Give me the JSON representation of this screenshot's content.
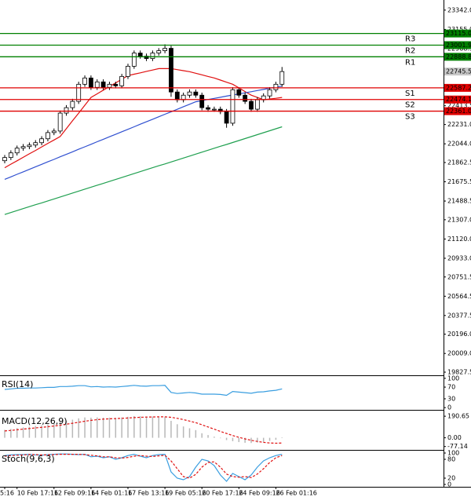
{
  "chart_data": [
    {
      "type": "candlestick",
      "categories": [
        "5:16",
        null,
        "10 Feb 17:16",
        null,
        null,
        null,
        null,
        null,
        "12 Feb 09:16",
        null,
        null,
        null,
        null,
        null,
        "14 Feb 01:16",
        null,
        null,
        null,
        null,
        null,
        "17 Feb 13:16",
        null,
        null,
        null,
        null,
        null,
        "19 Feb 05:16",
        null,
        null,
        null,
        null,
        null,
        "20 Feb 17:16",
        null,
        null,
        null,
        null,
        null,
        "24 Feb 09:16",
        null,
        null,
        null,
        null,
        null,
        "26 Feb 01:16",
        null
      ],
      "open": [
        21880,
        21911,
        21956,
        22002,
        22017,
        22032,
        22055,
        22093,
        22153,
        22168,
        22342,
        22395,
        22456,
        22622,
        22683,
        22592,
        22645,
        22592,
        22622,
        22607,
        22698,
        22797,
        22925,
        22895,
        22872,
        22925,
        22948,
        22971,
        22547,
        22471,
        22516,
        22547,
        22516,
        22395,
        22380,
        22380,
        22357,
        22244,
        22569,
        22516,
        22456,
        22380,
        22471,
        22509,
        22569,
        22622
      ],
      "high": [
        21936,
        21981,
        22027,
        22042,
        22057,
        22080,
        22118,
        22178,
        22193,
        22367,
        22420,
        22481,
        22647,
        22708,
        22708,
        22670,
        22670,
        22647,
        22647,
        22723,
        22822,
        22950,
        22950,
        22920,
        22950,
        22973,
        23010,
        22996,
        22572,
        22541,
        22572,
        22572,
        22541,
        22420,
        22405,
        22405,
        22382,
        22594,
        22594,
        22541,
        22481,
        22496,
        22534,
        22594,
        22647,
        22790
      ],
      "low": [
        21855,
        21886,
        21931,
        21977,
        21992,
        22007,
        22030,
        22068,
        22128,
        22143,
        22317,
        22370,
        22431,
        22597,
        22567,
        22567,
        22567,
        22567,
        22582,
        22582,
        22673,
        22772,
        22870,
        22847,
        22847,
        22900,
        22923,
        22500,
        22446,
        22446,
        22491,
        22491,
        22370,
        22355,
        22355,
        22332,
        22200,
        22219,
        22491,
        22431,
        22355,
        22355,
        22446,
        22484,
        22544,
        22597
      ],
      "close": [
        21911,
        21956,
        22002,
        22017,
        22032,
        22055,
        22093,
        22153,
        22168,
        22342,
        22395,
        22456,
        22622,
        22683,
        22592,
        22645,
        22592,
        22622,
        22607,
        22698,
        22797,
        22925,
        22895,
        22872,
        22925,
        22948,
        22971,
        22547,
        22471,
        22516,
        22547,
        22516,
        22395,
        22380,
        22380,
        22357,
        22244,
        22569,
        22516,
        22456,
        22380,
        22471,
        22509,
        22569,
        22622,
        22745.5
      ],
      "up_color": "#ffffff",
      "down_color": "#000000",
      "outline_color": "#000000",
      "series": [
        {
          "color": "#e01010",
          "values": [
            21812,
            21846,
            21879,
            21913,
            21947,
            21980,
            22014,
            22048,
            22081,
            22115,
            22191,
            22267,
            22342,
            22418,
            22494,
            22529,
            22565,
            22600,
            22635,
            22671,
            22706,
            22720,
            22733,
            22747,
            22760,
            22774,
            22774,
            22774,
            22764,
            22754,
            22744,
            22729,
            22714,
            22698,
            22683,
            22663,
            22642,
            22622,
            22587,
            22551,
            22516,
            22494,
            22471,
            22479,
            22486,
            22494
          ]
        },
        {
          "color": "#3050d0",
          "values": [
            21699,
            21723,
            21748,
            21772,
            21796,
            21821,
            21845,
            21869,
            21893,
            21918,
            21942,
            21966,
            21991,
            22015,
            22039,
            22064,
            22088,
            22112,
            22136,
            22161,
            22185,
            22209,
            22234,
            22258,
            22282,
            22307,
            22331,
            22355,
            22379,
            22404,
            22428,
            22452,
            22463,
            22474,
            22485,
            22496,
            22507,
            22518,
            22528,
            22539,
            22550,
            22561,
            22572,
            22583,
            22594,
            22604
          ]
        },
        {
          "color": "#20a050",
          "values": [
            21358,
            21377,
            21396,
            21415,
            21434,
            21453,
            21471,
            21490,
            21509,
            21528,
            21547,
            21566,
            21585,
            21604,
            21623,
            21642,
            21660,
            21679,
            21698,
            21717,
            21736,
            21755,
            21774,
            21793,
            21812,
            21831,
            21849,
            21868,
            21887,
            21906,
            21925,
            21944,
            21963,
            21982,
            22001,
            22020,
            22038,
            22057,
            22076,
            22095,
            22114,
            22133,
            22152,
            22171,
            22190,
            22209
          ]
        }
      ],
      "levels": {
        "names": [
          "R3",
          "R2",
          "R1",
          "S1",
          "S2",
          "S3"
        ],
        "values": [
          23115.0,
          23001.9,
          22888.8,
          22587.2,
          22474.1,
          22361.0
        ],
        "value_labels": [
          "23115.0",
          "23001.9",
          "22888.8",
          "22587.2",
          "22474.1",
          "22361.0"
        ],
        "colors": [
          "#008000",
          "#008000",
          "#008000",
          "#e00000",
          "#e00000",
          "#e00000"
        ]
      },
      "ylim": [
        19797,
        23440
      ],
      "yticks": [
        {
          "value": 23342.0,
          "label": "23342.0"
        },
        {
          "value": 23155.0,
          "label": "23155.0"
        },
        22968.5,
        22413.5,
        {
          "value": 22231.0,
          "label": "22231.0"
        },
        {
          "value": 22044.0,
          "label": "22044.0"
        },
        21862.5,
        21675.5,
        21488.5,
        {
          "value": 21307.0,
          "label": "21307.0"
        },
        {
          "value": 21120.0,
          "label": "21120.0"
        },
        {
          "value": 20933.0,
          "label": "20933.0"
        },
        20751.5,
        20564.5,
        20377.5,
        {
          "value": 20196.0,
          "label": "20196.0"
        },
        {
          "value": 20009.0,
          "label": "20009.0"
        },
        19827.5
      ]
    },
    {
      "type": "line",
      "title": "RSI(14)",
      "series": [
        {
          "color": "#3a9ee0",
          "values": [
            62,
            64,
            66,
            66,
            67,
            67,
            68,
            69,
            69,
            72,
            72,
            73,
            75,
            75,
            71,
            72,
            70,
            71,
            70,
            72,
            74,
            76,
            74,
            73,
            75,
            75,
            76,
            52,
            48,
            50,
            52,
            50,
            46,
            46,
            46,
            45,
            42,
            55,
            53,
            51,
            49,
            53,
            54,
            57,
            59,
            64
          ]
        }
      ],
      "ylim": [
        -5,
        105
      ],
      "yticks": [
        100,
        70,
        30,
        0
      ]
    },
    {
      "type": "macd",
      "title": "MACD(12,26,9)",
      "histogram": {
        "color": "#b8b8b8",
        "values": [
          70,
          78,
          86,
          92,
          98,
          104,
          110,
          118,
          124,
          140,
          150,
          160,
          172,
          180,
          178,
          180,
          178,
          178,
          176,
          180,
          186,
          192,
          190,
          188,
          188,
          188,
          186,
          150,
          120,
          100,
          84,
          68,
          40,
          24,
          10,
          -4,
          -20,
          -30,
          -38,
          -44,
          -46,
          -42,
          -36,
          -28,
          -18,
          4
        ]
      },
      "signal": {
        "color": "#e01010",
        "dashed": true,
        "values": [
          60,
          65,
          71,
          77,
          82,
          87,
          92,
          98,
          104,
          111,
          120,
          128,
          137,
          146,
          154,
          160,
          165,
          168,
          170,
          172,
          175,
          178,
          181,
          183,
          184,
          185,
          185,
          181,
          172,
          161,
          148,
          134,
          115,
          96,
          76,
          56,
          38,
          20,
          4,
          -10,
          -22,
          -32,
          -40,
          -46,
          -48,
          -46
        ]
      },
      "ylim": [
        -100,
        240
      ],
      "yticks": [
        190.65,
        {
          "value": 0,
          "label": "0.00"
        },
        -77.14
      ]
    },
    {
      "type": "stochastic",
      "title": "Stoch(9,6,3)",
      "series": [
        {
          "color": "#3a9ee0",
          "dashed": false,
          "values": [
            92,
            94,
            95,
            95,
            96,
            94,
            93,
            95,
            96,
            97,
            97,
            96,
            95,
            96,
            88,
            90,
            85,
            88,
            80,
            85,
            92,
            96,
            90,
            85,
            92,
            95,
            96,
            40,
            20,
            15,
            25,
            55,
            80,
            75,
            60,
            30,
            10,
            35,
            25,
            15,
            30,
            55,
            75,
            85,
            92,
            96
          ]
        },
        {
          "color": "#e01010",
          "dashed": true,
          "values": [
            90,
            92,
            93,
            94,
            95,
            95,
            94,
            94,
            95,
            96,
            96,
            96,
            96,
            95,
            93,
            91,
            88,
            88,
            85,
            84,
            86,
            90,
            92,
            90,
            89,
            91,
            93,
            75,
            50,
            25,
            20,
            32,
            55,
            70,
            72,
            55,
            33,
            25,
            23,
            25,
            22,
            33,
            50,
            70,
            85,
            92
          ]
        }
      ],
      "ylim": [
        -5,
        105
      ],
      "yticks": [
        100,
        80,
        20,
        0
      ]
    }
  ]
}
